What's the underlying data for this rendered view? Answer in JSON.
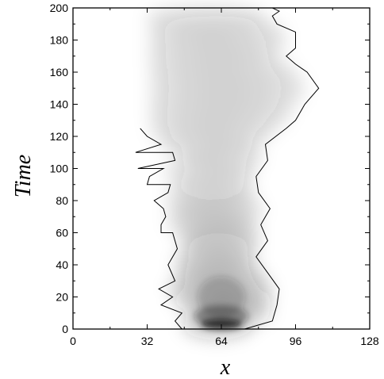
{
  "chart_data": {
    "type": "heatmap",
    "title": "",
    "xlabel": "x",
    "ylabel": "Time",
    "xlim": [
      0,
      128
    ],
    "ylim": [
      0,
      200
    ],
    "xticks": [
      0,
      32,
      64,
      96,
      128
    ],
    "xtick_labels": [
      "0",
      "32",
      "64",
      "96",
      "128"
    ],
    "yticks": [
      0,
      20,
      40,
      60,
      80,
      100,
      120,
      140,
      160,
      180,
      200
    ],
    "ytick_labels": [
      "0",
      "20",
      "40",
      "60",
      "80",
      "100",
      "120",
      "140",
      "160",
      "180",
      "200"
    ],
    "colormap": {
      "low": "#ffffff",
      "high": "#1a1a1a"
    },
    "density_note": "grayscale density, darkest near x=64 at Time=0, spreading outward with Time",
    "series": [
      {
        "role": "left-boundary",
        "x": [
          47,
          44,
          38,
          37,
          41,
          45,
          43,
          38,
          39,
          41,
          42,
          39,
          44,
          43,
          38,
          32,
          29,
          27,
          28,
          33,
          32,
          35,
          40,
          38,
          45,
          41,
          44,
          43,
          47
        ],
        "y": [
          0,
          5,
          15,
          25,
          40,
          50,
          60,
          65,
          75,
          85,
          90,
          100,
          105,
          110,
          115,
          120,
          125,
          110,
          100,
          95,
          90,
          80,
          70,
          60,
          50,
          40,
          30,
          20,
          10
        ]
      },
      {
        "role": "right-boundary",
        "x": [
          74,
          86,
          88,
          89,
          84,
          79,
          84,
          81,
          85,
          80,
          79,
          84,
          83,
          92,
          96,
          100,
          106,
          101,
          96,
          92,
          96,
          96,
          88,
          86,
          89,
          86,
          80
        ],
        "y": [
          0,
          5,
          15,
          25,
          35,
          45,
          55,
          65,
          75,
          85,
          95,
          105,
          115,
          125,
          130,
          140,
          150,
          160,
          165,
          170,
          175,
          185,
          190,
          195,
          198,
          200,
          200
        ]
      }
    ]
  }
}
